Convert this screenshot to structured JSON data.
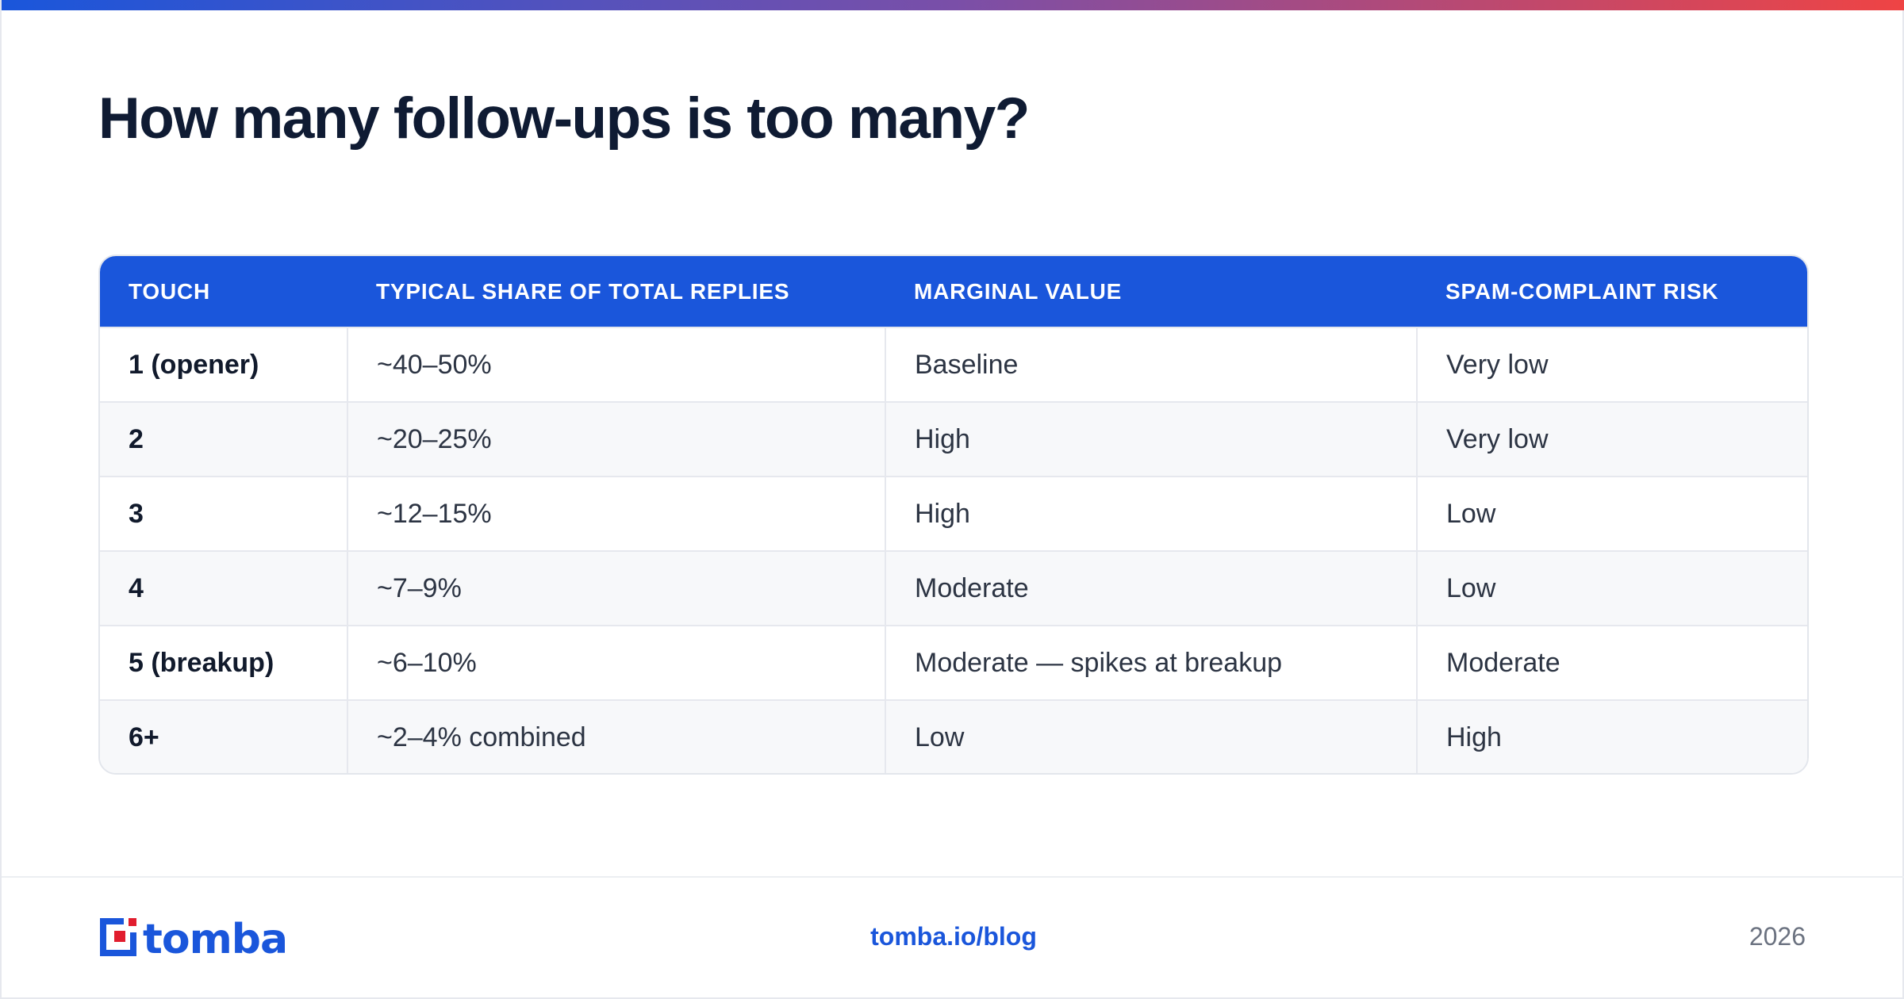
{
  "title": "How many follow-ups is too many?",
  "colors": {
    "header_bg": "#1a56db",
    "gradient_start": "#1a56db",
    "gradient_end": "#ef4444",
    "brand_blue": "#1a56db",
    "brand_red": "#e11d2e"
  },
  "table": {
    "headers": [
      "TOUCH",
      "TYPICAL SHARE OF TOTAL REPLIES",
      "MARGINAL VALUE",
      "SPAM-COMPLAINT RISK"
    ],
    "rows": [
      [
        "1 (opener)",
        "~40–50%",
        "Baseline",
        "Very low"
      ],
      [
        "2",
        "~20–25%",
        "High",
        "Very low"
      ],
      [
        "3",
        "~12–15%",
        "High",
        "Low"
      ],
      [
        "4",
        "~7–9%",
        "Moderate",
        "Low"
      ],
      [
        "5 (breakup)",
        "~6–10%",
        "Moderate — spikes at breakup",
        "Moderate"
      ],
      [
        "6+",
        "~2–4% combined",
        "Low",
        "High"
      ]
    ]
  },
  "footer": {
    "logo": "tomba",
    "logo_icon": "tomba-logo-icon",
    "link": "tomba.io/blog",
    "year": "2026"
  }
}
